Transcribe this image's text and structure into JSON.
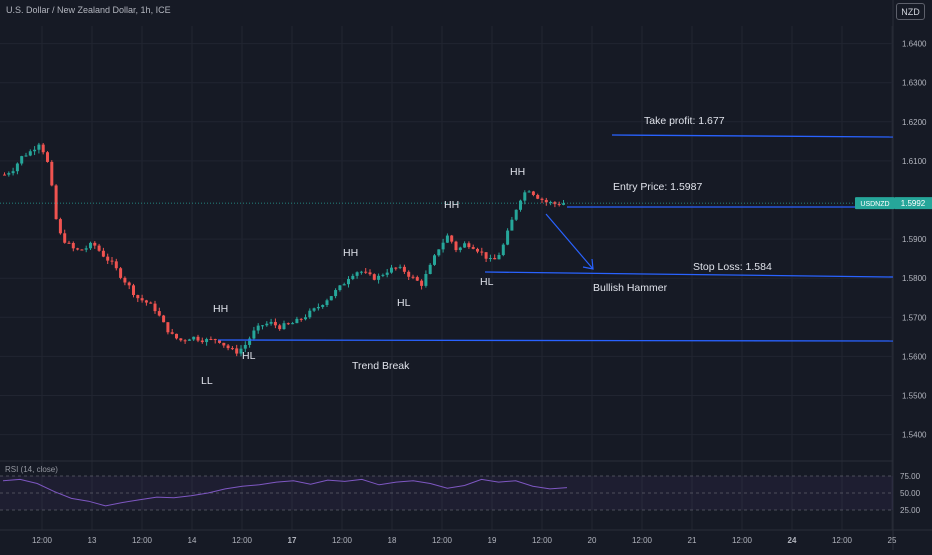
{
  "header": {
    "title": "U.S. Dollar / New Zealand Dollar, 1h, ICE"
  },
  "currency_button": "NZD",
  "rsi": {
    "label": "RSI (14, close)",
    "levels": [
      "75.00",
      "50.00",
      "25.00"
    ]
  },
  "colors": {
    "background": "#161a25",
    "up": "#26a69a",
    "down": "#ef5350",
    "drawing": "#2962ff",
    "rsi_line": "#7e57c2",
    "price_badge": "#26a69a"
  },
  "price_badge": {
    "symbol": "USDNZD",
    "price": "1.5992"
  },
  "chart_data": {
    "type": "candlestick",
    "symbol": "USDNZD",
    "timeframe": "1h",
    "y_axis_labels": [
      "1.6400",
      "1.6300",
      "1.6200",
      "1.6100",
      "1.5900",
      "1.5800",
      "1.5700",
      "1.5600",
      "1.5500",
      "1.5400"
    ],
    "x_axis_labels": [
      "12:00",
      "13",
      "12:00",
      "14",
      "12:00",
      "17",
      "12:00",
      "18",
      "12:00",
      "19",
      "12:00",
      "20",
      "12:00",
      "21",
      "12:00",
      "24",
      "12:00",
      "25"
    ],
    "ylim": [
      1.5335,
      1.6445
    ],
    "current_price": 1.5992,
    "close_path": [
      1.6065,
      1.608,
      1.6112,
      1.6125,
      1.615,
      1.6085,
      1.592,
      1.589,
      1.587,
      1.5875,
      1.5888,
      1.5862,
      1.584,
      1.581,
      1.578,
      1.575,
      1.5738,
      1.572,
      1.568,
      1.565,
      1.564,
      1.565,
      1.5645,
      1.564,
      1.5645,
      1.5625,
      1.561,
      1.5625,
      1.566,
      1.568,
      1.5685,
      1.5676,
      1.568,
      1.569,
      1.5705,
      1.572,
      1.574,
      1.576,
      1.578,
      1.581,
      1.582,
      1.5805,
      1.58,
      1.5818,
      1.5826,
      1.582,
      1.58,
      1.5785,
      1.583,
      1.588,
      1.591,
      1.587,
      1.589,
      1.588,
      1.586,
      1.584,
      1.587,
      1.5935,
      1.6,
      1.603,
      1.601,
      1.5995,
      1.599,
      1.5992
    ],
    "annotations": [
      {
        "text": "Take profit: 1.677"
      },
      {
        "text": "Entry Price: 1.5987"
      },
      {
        "text": "Stop Loss: 1.584"
      },
      {
        "text": "Bullish Hammer"
      },
      {
        "text": "Trend Break"
      },
      {
        "text": "HH"
      },
      {
        "text": "HH"
      },
      {
        "text": "HH"
      },
      {
        "text": "HH"
      },
      {
        "text": "HL"
      },
      {
        "text": "HL"
      },
      {
        "text": "HL"
      },
      {
        "text": "LL"
      }
    ],
    "rsi_values": [
      68,
      70,
      64,
      52,
      42,
      38,
      31,
      36,
      40,
      44,
      43,
      46,
      50,
      56,
      60,
      62,
      66,
      68,
      63,
      69,
      67,
      70,
      62,
      66,
      68,
      64,
      57,
      61,
      70,
      66,
      68,
      60,
      56,
      58
    ],
    "grid": true
  }
}
